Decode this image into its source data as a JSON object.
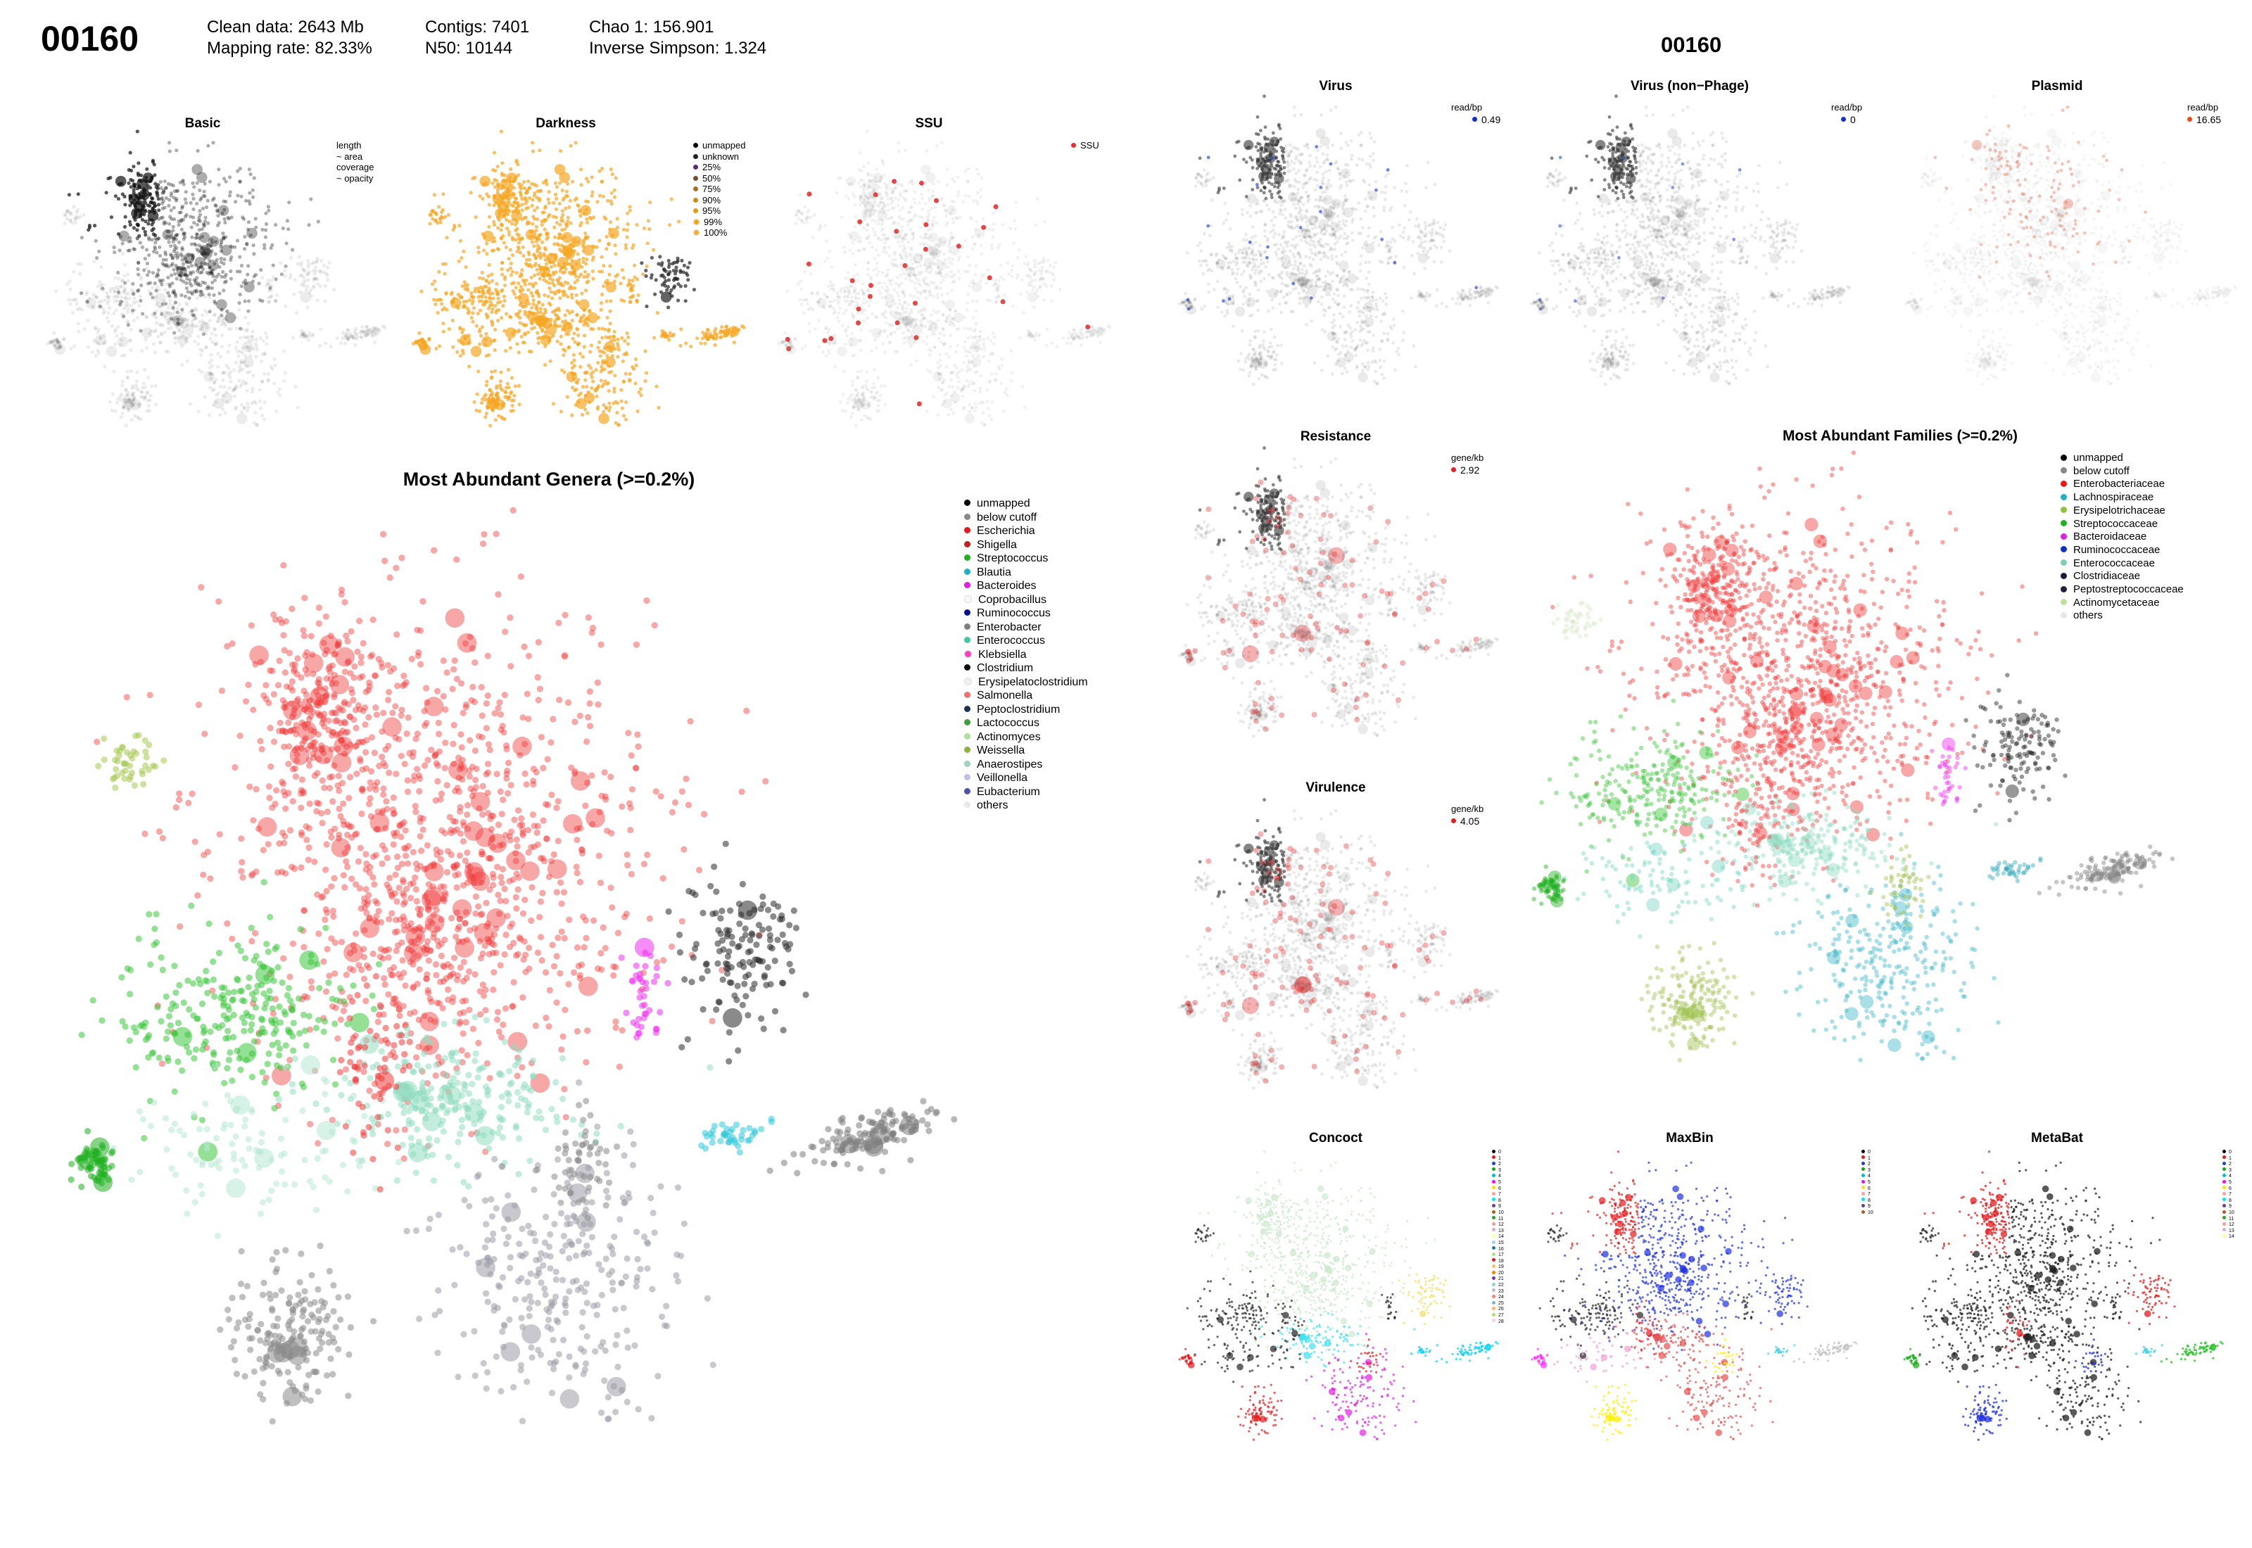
{
  "header": {
    "sample_id": "00160",
    "clean_data": "Clean data: 2643 Mb",
    "mapping_rate": "Mapping rate: 82.33%",
    "contigs": "Contigs: 7401",
    "n50": "N50: 10144",
    "chao1": "Chao 1: 156.901",
    "inverse_simpson": "Inverse Simpson: 1.324"
  },
  "right_header": {
    "sample_id": "00160"
  },
  "panels": {
    "basic": {
      "title": "Basic",
      "legend": [
        "length",
        "~ area",
        "coverage",
        "~ opacity"
      ]
    },
    "darkness": {
      "title": "Darkness",
      "legend": [
        {
          "label": "unmapped",
          "color": "#000000"
        },
        {
          "label": "unknown",
          "color": "#222222"
        },
        {
          "label": "25%",
          "color": "#5a2d6e"
        },
        {
          "label": "50%",
          "color": "#7a4a2a"
        },
        {
          "label": "75%",
          "color": "#a6701c"
        },
        {
          "label": "90%",
          "color": "#d08a10"
        },
        {
          "label": "95%",
          "color": "#e89a0c"
        },
        {
          "label": "99%",
          "color": "#f2a616"
        },
        {
          "label": "100%",
          "color": "#f5b02a"
        }
      ]
    },
    "ssu": {
      "title": "SSU",
      "legend": [
        {
          "label": "SSU",
          "color": "#e53030"
        }
      ]
    },
    "virus": {
      "title": "Virus",
      "unit": "read/bp",
      "value": "0.49",
      "color": "#1030d0"
    },
    "virus_nonphage": {
      "title": "Virus (non−Phage)",
      "unit": "read/bp",
      "value": "0",
      "color": "#1030d0"
    },
    "plasmid": {
      "title": "Plasmid",
      "unit": "read/bp",
      "value": "16.65",
      "color": "#e0501a"
    },
    "resistance": {
      "title": "Resistance",
      "unit": "gene/kb",
      "value": "2.92",
      "color": "#e02020"
    },
    "virulence": {
      "title": "Virulence",
      "unit": "gene/kb",
      "value": "4.05",
      "color": "#e02020"
    },
    "concoct": {
      "title": "Concoct",
      "legend": [
        "0",
        "1",
        "2",
        "3",
        "4",
        "5",
        "6",
        "7",
        "8",
        "9",
        "10",
        "11",
        "12",
        "13",
        "14",
        "15",
        "16",
        "17",
        "18",
        "19",
        "20",
        "21",
        "22",
        "23",
        "24",
        "25",
        "26",
        "27",
        "28"
      ]
    },
    "maxbin": {
      "title": "MaxBin",
      "legend": [
        "0",
        "1",
        "2",
        "3",
        "4",
        "5",
        "6",
        "7",
        "8",
        "9",
        "10"
      ]
    },
    "metabat": {
      "title": "MetaBat",
      "legend": [
        "0",
        "1",
        "2",
        "3",
        "4",
        "5",
        "6",
        "7",
        "8",
        "9",
        "10",
        "11",
        "12",
        "13",
        "14"
      ]
    }
  },
  "genera": {
    "title": "Most Abundant Genera (>=0.2%)",
    "legend": [
      {
        "label": "unmapped",
        "color": "#000000"
      },
      {
        "label": "below cutoff",
        "color": "#888888"
      },
      {
        "label": "Escherichia",
        "color": "#e41a1c"
      },
      {
        "label": "Shigella",
        "color": "#c02020"
      },
      {
        "label": "Streptococcus",
        "color": "#20b020"
      },
      {
        "label": "Blautia",
        "color": "#20b0c0"
      },
      {
        "label": "Bacteroides",
        "color": "#e020e0"
      },
      {
        "label": "Coprobacillus",
        "color": "#f8f8f8"
      },
      {
        "label": "Ruminococcus",
        "color": "#101090"
      },
      {
        "label": "Enterobacter",
        "color": "#808080"
      },
      {
        "label": "Enterococcus",
        "color": "#40c8a0"
      },
      {
        "label": "Klebsiella",
        "color": "#ff40c0"
      },
      {
        "label": "Clostridium",
        "color": "#101010"
      },
      {
        "label": "Erysipelatoclostridium",
        "color": "#f0f0f0"
      },
      {
        "label": "Salmonella",
        "color": "#f07070"
      },
      {
        "label": "Peptoclostridium",
        "color": "#203050"
      },
      {
        "label": "Lactococcus",
        "color": "#40a040"
      },
      {
        "label": "Actinomyces",
        "color": "#b0e0a0"
      },
      {
        "label": "Weissella",
        "color": "#90b040"
      },
      {
        "label": "Anaerostipes",
        "color": "#a0d0c0"
      },
      {
        "label": "Veillonella",
        "color": "#c0c0e0"
      },
      {
        "label": "Eubacterium",
        "color": "#5050b0"
      },
      {
        "label": "others",
        "color": "#e8e8e8"
      }
    ]
  },
  "families": {
    "title": "Most Abundant Families (>=0.2%)",
    "legend": [
      {
        "label": "unmapped",
        "color": "#000000"
      },
      {
        "label": "below cutoff",
        "color": "#888888"
      },
      {
        "label": "Enterobacteriaceae",
        "color": "#e41a1c"
      },
      {
        "label": "Lachnospiraceae",
        "color": "#20b0c0"
      },
      {
        "label": "Erysipelotrichaceae",
        "color": "#90c040"
      },
      {
        "label": "Streptococcaceae",
        "color": "#20b020"
      },
      {
        "label": "Bacteroidaceae",
        "color": "#e020e0"
      },
      {
        "label": "Ruminococcaceae",
        "color": "#1030c0"
      },
      {
        "label": "Enterococcaceae",
        "color": "#80d0b0"
      },
      {
        "label": "Clostridiaceae",
        "color": "#1a1a3a"
      },
      {
        "label": "Peptostreptococcaceae",
        "color": "#202040"
      },
      {
        "label": "Actinomycetaceae",
        "color": "#c0e0a0"
      },
      {
        "label": "others",
        "color": "#e8e8e8"
      }
    ]
  },
  "chart_data": [
    {
      "type": "scatter",
      "title": "Basic",
      "legend": [
        "length",
        "~ area",
        "coverage",
        "~ opacity"
      ]
    },
    {
      "type": "scatter",
      "title": "Darkness",
      "series": [
        {
          "name": "unmapped"
        },
        {
          "name": "unknown"
        },
        {
          "name": "25%"
        },
        {
          "name": "50%"
        },
        {
          "name": "75%"
        },
        {
          "name": "90%"
        },
        {
          "name": "95%"
        },
        {
          "name": "99%"
        },
        {
          "name": "100%"
        }
      ]
    },
    {
      "type": "scatter",
      "title": "SSU",
      "series": [
        {
          "name": "SSU"
        }
      ]
    },
    {
      "type": "scatter",
      "title": "Virus",
      "legend_unit": "read/bp",
      "legend_max": 0.49
    },
    {
      "type": "scatter",
      "title": "Virus (non−Phage)",
      "legend_unit": "read/bp",
      "legend_max": 0
    },
    {
      "type": "scatter",
      "title": "Plasmid",
      "legend_unit": "read/bp",
      "legend_max": 16.65
    },
    {
      "type": "scatter",
      "title": "Resistance",
      "legend_unit": "gene/kb",
      "legend_max": 2.92
    },
    {
      "type": "scatter",
      "title": "Virulence",
      "legend_unit": "gene/kb",
      "legend_max": 4.05
    },
    {
      "type": "scatter",
      "title": "Most Abundant Genera (>=0.2%)",
      "series": [
        {
          "name": "unmapped"
        },
        {
          "name": "below cutoff"
        },
        {
          "name": "Escherichia"
        },
        {
          "name": "Shigella"
        },
        {
          "name": "Streptococcus"
        },
        {
          "name": "Blautia"
        },
        {
          "name": "Bacteroides"
        },
        {
          "name": "Coprobacillus"
        },
        {
          "name": "Ruminococcus"
        },
        {
          "name": "Enterobacter"
        },
        {
          "name": "Enterococcus"
        },
        {
          "name": "Klebsiella"
        },
        {
          "name": "Clostridium"
        },
        {
          "name": "Erysipelatoclostridium"
        },
        {
          "name": "Salmonella"
        },
        {
          "name": "Peptoclostridium"
        },
        {
          "name": "Lactococcus"
        },
        {
          "name": "Actinomyces"
        },
        {
          "name": "Weissella"
        },
        {
          "name": "Anaerostipes"
        },
        {
          "name": "Veillonella"
        },
        {
          "name": "Eubacterium"
        },
        {
          "name": "others"
        }
      ]
    },
    {
      "type": "scatter",
      "title": "Most Abundant Families (>=0.2%)",
      "series": [
        {
          "name": "unmapped"
        },
        {
          "name": "below cutoff"
        },
        {
          "name": "Enterobacteriaceae"
        },
        {
          "name": "Lachnospiraceae"
        },
        {
          "name": "Erysipelotrichaceae"
        },
        {
          "name": "Streptococcaceae"
        },
        {
          "name": "Bacteroidaceae"
        },
        {
          "name": "Ruminococcaceae"
        },
        {
          "name": "Enterococcaceae"
        },
        {
          "name": "Clostridiaceae"
        },
        {
          "name": "Peptostreptococcaceae"
        },
        {
          "name": "Actinomycetaceae"
        },
        {
          "name": "others"
        }
      ]
    },
    {
      "type": "scatter",
      "title": "Concoct",
      "series_count": 29
    },
    {
      "type": "scatter",
      "title": "MaxBin",
      "series_count": 11
    },
    {
      "type": "scatter",
      "title": "MetaBat",
      "series_count": 15
    }
  ]
}
